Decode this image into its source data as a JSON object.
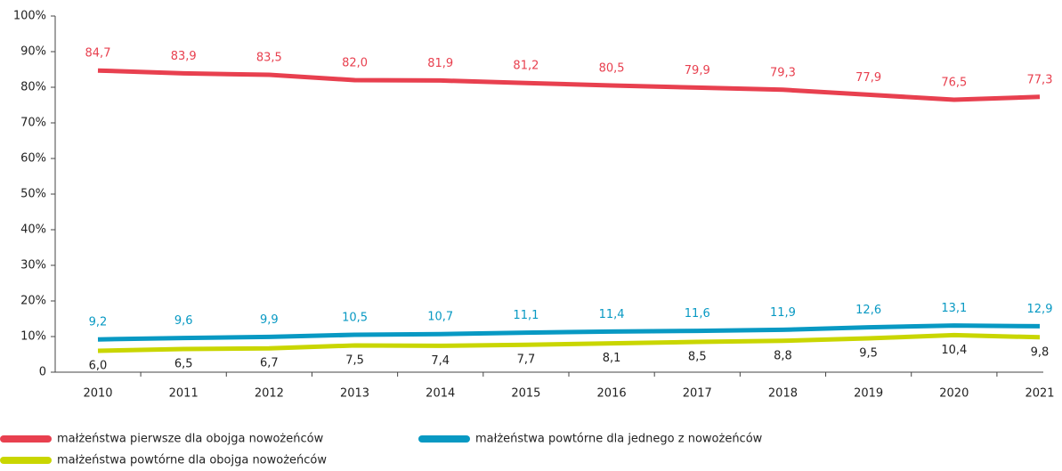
{
  "chart_data": {
    "type": "line",
    "categories": [
      "2010",
      "2011",
      "2012",
      "2013",
      "2014",
      "2015",
      "2016",
      "2017",
      "2018",
      "2019",
      "2020",
      "2021"
    ],
    "series": [
      {
        "name": "małżeństwa pierwsze dla obojga nowożeńców",
        "color": "#e8404f",
        "label_color": "#e8404f",
        "values": [
          84.7,
          83.9,
          83.5,
          82.0,
          81.9,
          81.2,
          80.5,
          79.9,
          79.3,
          77.9,
          76.5,
          77.3
        ],
        "value_labels": [
          "84,7",
          "83,9",
          "83,5",
          "82,0",
          "81,9",
          "81,2",
          "80,5",
          "79,9",
          "79,3",
          "77,9",
          "76,5",
          "77,3"
        ]
      },
      {
        "name": "małżeństwa powtórne dla jednego z nowożeńców",
        "color": "#0899c3",
        "label_color": "#0899c3",
        "values": [
          9.2,
          9.6,
          9.9,
          10.5,
          10.7,
          11.1,
          11.4,
          11.6,
          11.9,
          12.6,
          13.1,
          12.9
        ],
        "value_labels": [
          "9,2",
          "9,6",
          "9,9",
          "10,5",
          "10,7",
          "11,1",
          "11,4",
          "11,6",
          "11,9",
          "12,6",
          "13,1",
          "12,9"
        ]
      },
      {
        "name": "małżeństwa powtórne dla obojga nowożeńców",
        "color": "#c9d600",
        "label_color": "#222222",
        "values": [
          6.0,
          6.5,
          6.7,
          7.5,
          7.4,
          7.7,
          8.1,
          8.5,
          8.8,
          9.5,
          10.4,
          9.8
        ],
        "value_labels": [
          "6,0",
          "6,5",
          "6,7",
          "7,5",
          "7,4",
          "7,7",
          "8,1",
          "8,5",
          "8,8",
          "9,5",
          "10,4",
          "9,8"
        ]
      }
    ],
    "ylim": [
      0,
      100
    ],
    "yticks": [
      0,
      {
        "value": 10,
        "label": "10%"
      },
      {
        "value": 20,
        "label": "20%"
      },
      {
        "value": 30,
        "label": "30%"
      },
      {
        "value": 40,
        "label": "40%"
      },
      {
        "value": 50,
        "label": "50%"
      },
      {
        "value": 60,
        "label": "60%"
      },
      {
        "value": 70,
        "label": "70%"
      },
      {
        "value": 80,
        "label": "80%"
      },
      {
        "value": 90,
        "label": "90%"
      },
      {
        "value": 100,
        "label": "100%"
      }
    ]
  }
}
